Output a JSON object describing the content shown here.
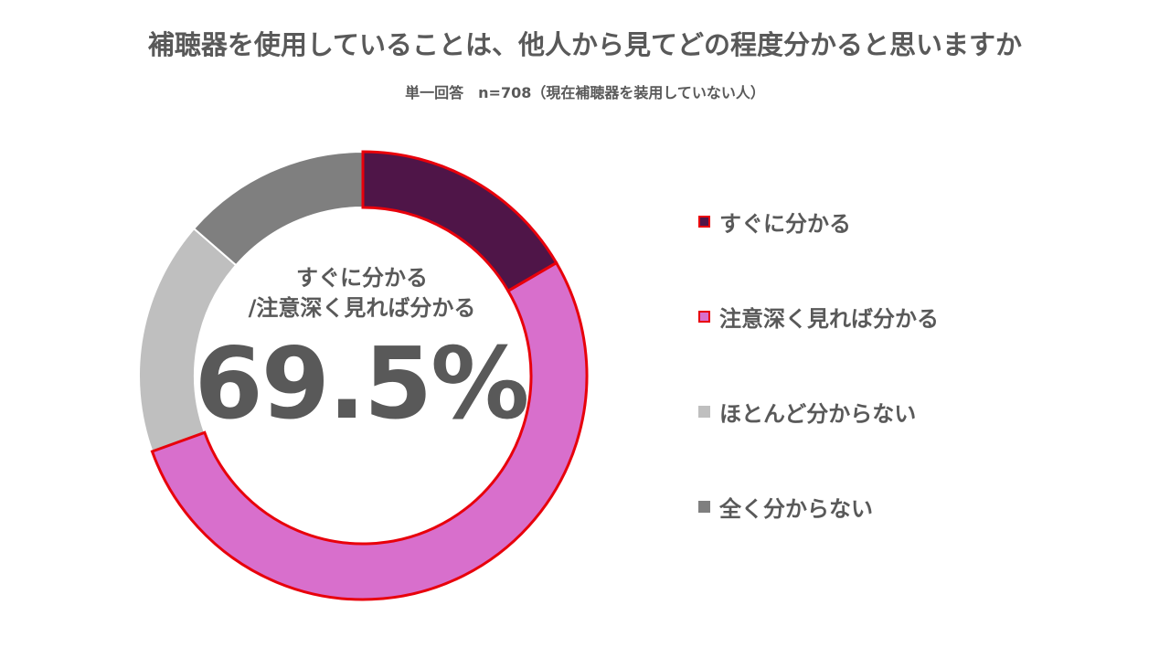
{
  "title": "補聴器を使用していることは、他人から見てどの程度分かると思いますか",
  "subtitle": "単一回答　n=708（現在補聴器を装用していない人）",
  "center": {
    "label_line1": "すぐに分かる",
    "label_line2": "/注意深く見れば分かる",
    "value": "69.5%"
  },
  "chart_data": {
    "type": "pie",
    "title": "補聴器を使用していることは、他人から見てどの程度分かると思いますか",
    "subtitle": "単一回答　n=708（現在補聴器を装用していない人）",
    "categories": [
      "すぐに分かる",
      "注意深く見れば分かる",
      "ほとんど分からない",
      "全く分からない"
    ],
    "values": [
      16.6,
      52.9,
      16.9,
      13.6
    ],
    "colors": [
      "#4f1548",
      "#d86fcc",
      "#bfbfbf",
      "#7f7f7f"
    ],
    "highlight_outline": "#e8000b",
    "highlighted": [
      true,
      true,
      false,
      false
    ],
    "donut": true,
    "legend_position": "right"
  },
  "legend": [
    {
      "label": "すぐに分かる",
      "color": "#4f1548",
      "outline": "#e8000b"
    },
    {
      "label": "注意深く見れば分かる",
      "color": "#d86fcc",
      "outline": "#e8000b"
    },
    {
      "label": "ほとんど分からない",
      "color": "#bfbfbf",
      "outline": ""
    },
    {
      "label": "全く分からない",
      "color": "#7f7f7f",
      "outline": ""
    }
  ]
}
